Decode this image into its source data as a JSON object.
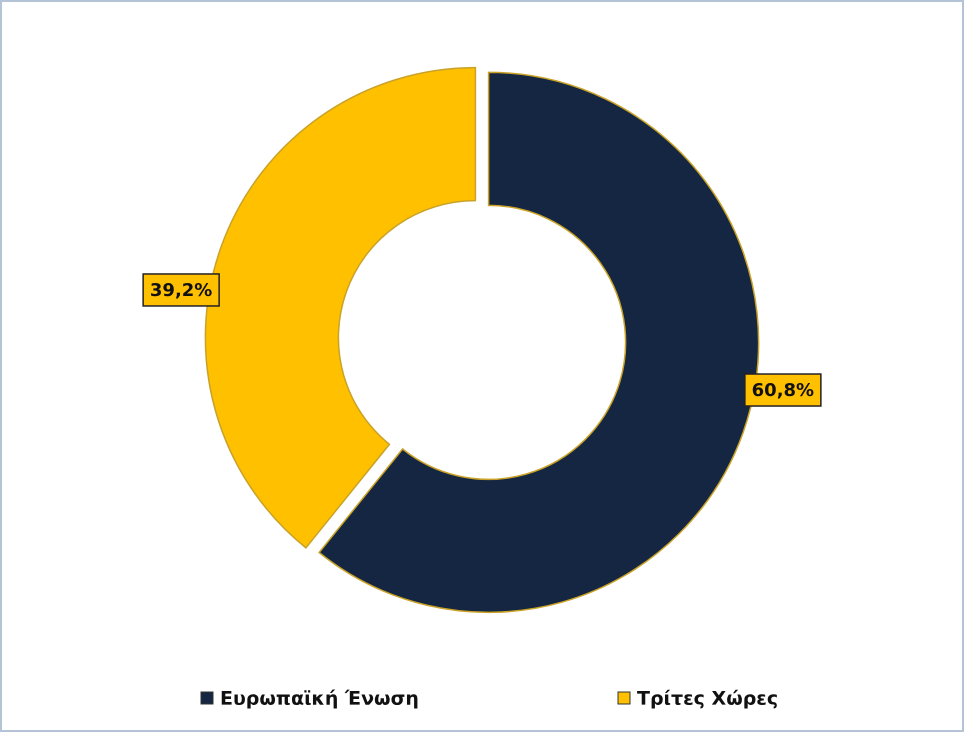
{
  "chart_data": {
    "type": "donut",
    "categories": [
      "Ευρωπαϊκή Ένωση",
      "Τρίτες Χώρες"
    ],
    "values": [
      60.8,
      39.2
    ],
    "value_labels": [
      "60,8%",
      "39,2%"
    ],
    "colors": [
      "#142641",
      "#FFC000"
    ],
    "legend": "bottom"
  }
}
